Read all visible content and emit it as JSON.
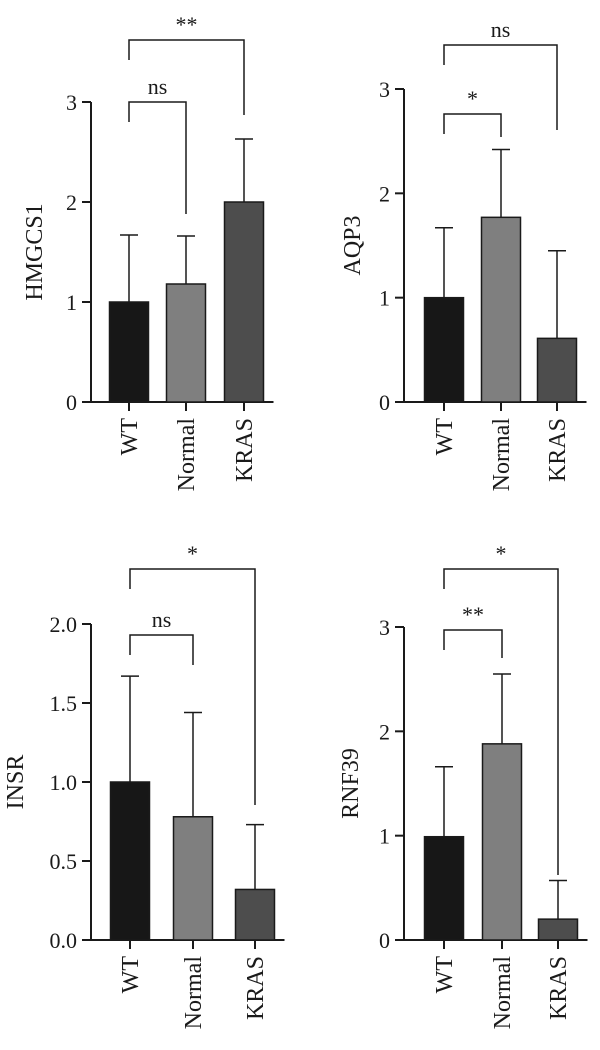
{
  "chart_data": [
    {
      "type": "bar",
      "ylabel": "HMGCS1",
      "categories": [
        "WT",
        "Normal",
        "KRAS"
      ],
      "values": [
        1.0,
        1.18,
        2.0
      ],
      "errors": [
        0.67,
        0.48,
        0.63
      ],
      "bar_colors": [
        "#171717",
        "#7f7f7f",
        "#4d4d4d"
      ],
      "ylim": [
        0,
        3
      ],
      "yticks": [
        0,
        1,
        2,
        3
      ],
      "ytick_labels": [
        "0",
        "1",
        "2",
        "3"
      ],
      "significance": [
        {
          "from": "WT",
          "to": "Normal",
          "label": "ns"
        },
        {
          "from": "WT",
          "to": "KRAS",
          "label": "**"
        }
      ]
    },
    {
      "type": "bar",
      "ylabel": "AQP3",
      "categories": [
        "WT",
        "Normal",
        "KRAS"
      ],
      "values": [
        1.0,
        1.77,
        0.61
      ],
      "errors": [
        0.67,
        0.65,
        0.84
      ],
      "bar_colors": [
        "#171717",
        "#7f7f7f",
        "#4d4d4d"
      ],
      "ylim": [
        0,
        3
      ],
      "yticks": [
        0,
        1,
        2,
        3
      ],
      "ytick_labels": [
        "0",
        "1",
        "2",
        "3"
      ],
      "significance": [
        {
          "from": "WT",
          "to": "Normal",
          "label": "*"
        },
        {
          "from": "WT",
          "to": "KRAS",
          "label": "ns"
        }
      ]
    },
    {
      "type": "bar",
      "ylabel": "INSR",
      "categories": [
        "WT",
        "Normal",
        "KRAS"
      ],
      "values": [
        1.0,
        0.78,
        0.32
      ],
      "errors": [
        0.67,
        0.66,
        0.41
      ],
      "bar_colors": [
        "#171717",
        "#7f7f7f",
        "#4d4d4d"
      ],
      "ylim": [
        0,
        2
      ],
      "yticks": [
        0,
        0.5,
        1,
        1.5,
        2
      ],
      "ytick_labels": [
        "0.0",
        "0.5",
        "1.0",
        "1.5",
        "2.0"
      ],
      "significance": [
        {
          "from": "WT",
          "to": "Normal",
          "label": "ns"
        },
        {
          "from": "WT",
          "to": "KRAS",
          "label": "*"
        }
      ]
    },
    {
      "type": "bar",
      "ylabel": "RNF39",
      "categories": [
        "WT",
        "Normal",
        "KRAS"
      ],
      "values": [
        0.99,
        1.88,
        0.2
      ],
      "errors": [
        0.67,
        0.67,
        0.37
      ],
      "bar_colors": [
        "#171717",
        "#7f7f7f",
        "#4d4d4d"
      ],
      "ylim": [
        0,
        3
      ],
      "yticks": [
        0,
        1,
        2,
        3
      ],
      "ytick_labels": [
        "0",
        "1",
        "2",
        "3"
      ],
      "significance": [
        {
          "from": "WT",
          "to": "Normal",
          "label": "**"
        },
        {
          "from": "WT",
          "to": "KRAS",
          "label": "*"
        }
      ]
    }
  ]
}
